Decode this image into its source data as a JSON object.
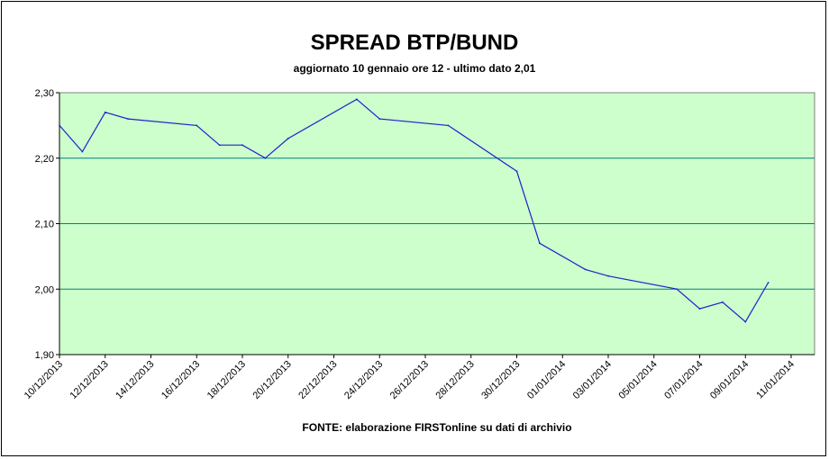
{
  "chart_data": {
    "type": "line",
    "title": "SPREAD BTP/BUND",
    "subtitle": "aggiornato 10 gennaio ore 12 - ultimo dato 2,01",
    "source": "FONTE: elaborazione FIRSTonline su dati di archivio",
    "ylim": [
      1.9,
      2.3
    ],
    "y_ticks": [
      "1,90",
      "2,00",
      "2,10",
      "2,20",
      "2,30"
    ],
    "y_tick_values": [
      1.9,
      2.0,
      2.1,
      2.2,
      2.3
    ],
    "x_tick_labels": [
      "10/12/2013",
      "12/12/2013",
      "14/12/2013",
      "16/12/2013",
      "18/12/2013",
      "20/12/2013",
      "22/12/2013",
      "24/12/2013",
      "26/12/2013",
      "28/12/2013",
      "30/12/2013",
      "01/01/2014",
      "03/01/2014",
      "05/01/2014",
      "07/01/2014",
      "09/01/2014",
      "11/01/2014"
    ],
    "x": [
      "10/12/2013",
      "11/12/2013",
      "12/12/2013",
      "13/12/2013",
      "16/12/2013",
      "17/12/2013",
      "18/12/2013",
      "19/12/2013",
      "20/12/2013",
      "23/12/2013",
      "24/12/2013",
      "27/12/2013",
      "30/12/2013",
      "31/12/2013",
      "02/01/2014",
      "03/01/2014",
      "06/01/2014",
      "07/01/2014",
      "08/01/2014",
      "09/01/2014",
      "10/01/2014"
    ],
    "series": [
      {
        "values": [
          2.25,
          2.21,
          2.27,
          2.26,
          2.25,
          2.22,
          2.22,
          2.2,
          2.23,
          2.29,
          2.26,
          2.25,
          2.18,
          2.07,
          2.03,
          2.02,
          2.0,
          1.97,
          1.98,
          1.95,
          2.01
        ]
      }
    ],
    "grid": true,
    "plot_background": "#CCFFCC",
    "line_color": "#1F1FCC",
    "gridline_color": "#008080"
  }
}
